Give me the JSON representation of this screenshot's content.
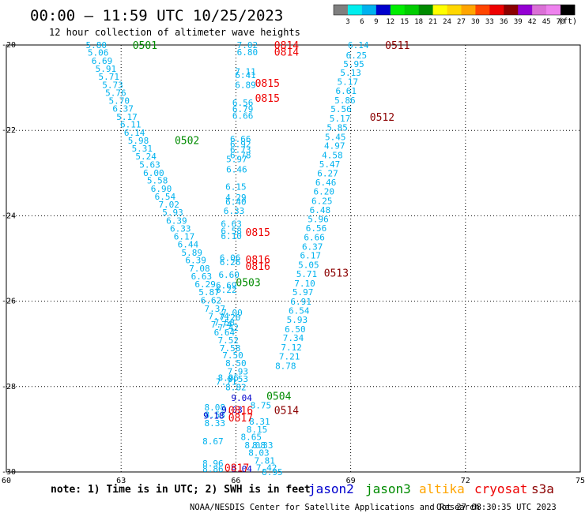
{
  "header": {
    "title": "00:00 — 11:59 UTC 10/25/2023",
    "subtitle": "12 hour collection of altimeter wave heights"
  },
  "legend": {
    "ticks": [
      "3",
      "6",
      "9",
      "12",
      "15",
      "18",
      "21",
      "24",
      "27",
      "30",
      "33",
      "36",
      "39",
      "42",
      "45",
      "70"
    ],
    "unit": "(ft)",
    "colors": [
      "#7f7f7f",
      "#00eeee",
      "#00b2ee",
      "#0000cd",
      "#00ee00",
      "#00cd00",
      "#008b00",
      "#ffff00",
      "#ffd700",
      "#ffa500",
      "#ff4500",
      "#ee0000",
      "#8b0000",
      "#9400d3",
      "#da70d6",
      "#ee82ee",
      "#000000"
    ]
  },
  "footer": {
    "note": "note: 1) Time is in UTC; 2) SWH is in feet",
    "satellites": [
      {
        "name": "jason2",
        "color": "#0000cd"
      },
      {
        "name": "jason3",
        "color": "#008b00"
      },
      {
        "name": "altika",
        "color": "#ffa500"
      },
      {
        "name": "cryosat",
        "color": "#ee0000"
      },
      {
        "name": "s3a",
        "color": "#8b0000"
      }
    ],
    "credit": "NOAA/NESDIS Center for Satellite Applications and Research",
    "timestamp": "Oct 27 08:30:35 UTC 2023"
  },
  "chart_data": {
    "type": "scatter",
    "title": "00:00 — 11:59 UTC 10/25/2023",
    "subtitle": "12 hour collection of altimeter wave heights",
    "xlim": [
      60,
      75
    ],
    "ylim": [
      -30,
      -20
    ],
    "xticks": [
      "60",
      "63",
      "66",
      "69",
      "72",
      "75"
    ],
    "yticks": [
      "-20",
      "-22",
      "-24",
      "-26",
      "-28",
      "-30"
    ],
    "grid": true,
    "series": [
      {
        "color": "#00b2ee",
        "points": [
          [
            62.35,
            -20.0,
            "5.80"
          ],
          [
            62.4,
            -20.18,
            "5.06"
          ],
          [
            62.5,
            -20.37,
            "6.69"
          ],
          [
            62.6,
            -20.55,
            "5.91"
          ],
          [
            62.68,
            -20.74,
            "5.71"
          ],
          [
            62.78,
            -20.93,
            "5.73"
          ],
          [
            62.86,
            -21.12,
            "5.76"
          ],
          [
            62.95,
            -21.3,
            "5.70"
          ],
          [
            63.05,
            -21.49,
            "6.37"
          ],
          [
            63.15,
            -21.68,
            "5.17"
          ],
          [
            63.25,
            -21.86,
            "6.11"
          ],
          [
            63.35,
            -22.05,
            "6.14"
          ],
          [
            63.45,
            -22.24,
            "5.98"
          ],
          [
            63.55,
            -22.42,
            "5.31"
          ],
          [
            63.65,
            -22.61,
            "5.24"
          ],
          [
            63.75,
            -22.8,
            "5.63"
          ],
          [
            63.85,
            -22.99,
            "6.00"
          ],
          [
            63.95,
            -23.17,
            "5.58"
          ],
          [
            64.05,
            -23.36,
            "6.90"
          ],
          [
            64.15,
            -23.55,
            "6.54"
          ],
          [
            64.25,
            -23.73,
            "7.02"
          ],
          [
            64.35,
            -23.92,
            "5.93"
          ],
          [
            64.45,
            -24.11,
            "6.39"
          ],
          [
            64.55,
            -24.3,
            "6.33"
          ],
          [
            64.65,
            -24.48,
            "6.17"
          ],
          [
            64.75,
            -24.67,
            "6.44"
          ],
          [
            64.85,
            -24.86,
            "5.89"
          ],
          [
            64.95,
            -25.04,
            "6.39"
          ],
          [
            65.05,
            -25.23,
            "7.08"
          ],
          [
            65.1,
            -25.42,
            "6.63"
          ],
          [
            65.2,
            -25.6,
            "6.29"
          ],
          [
            65.3,
            -25.79,
            "5.87"
          ],
          [
            65.35,
            -25.98,
            "6.62"
          ],
          [
            65.45,
            -26.17,
            "7.37"
          ],
          [
            65.55,
            -26.35,
            "7.74"
          ],
          [
            65.62,
            -26.54,
            "7.74"
          ],
          [
            65.7,
            -26.73,
            "6.64"
          ],
          [
            65.8,
            -26.91,
            "7.52"
          ],
          [
            65.85,
            -27.1,
            "7.58"
          ],
          [
            65.92,
            -27.26,
            "7.50"
          ],
          [
            66.0,
            -27.45,
            "8.50"
          ],
          [
            66.05,
            -27.64,
            "7.93"
          ],
          [
            66.05,
            -27.82,
            "8.53"
          ],
          [
            66.0,
            -28.01,
            "8.82"
          ],
          [
            65.8,
            -27.79,
            "8.96"
          ],
          [
            65.75,
            -27.88,
            "7.71"
          ],
          [
            65.45,
            -28.48,
            "8.08"
          ],
          [
            65.45,
            -28.66,
            "8.53"
          ],
          [
            65.45,
            -28.85,
            "8.33"
          ],
          [
            65.4,
            -29.28,
            "8.67"
          ],
          [
            65.4,
            -29.8,
            "8.96"
          ],
          [
            65.4,
            -29.93,
            "8.86"
          ],
          [
            66.65,
            -28.44,
            "8.75"
          ],
          [
            66.62,
            -28.82,
            "8.31"
          ],
          [
            66.55,
            -29.0,
            "8.15"
          ],
          [
            66.4,
            -29.18,
            "8.65"
          ],
          [
            66.5,
            -29.37,
            "8.08"
          ],
          [
            66.7,
            -29.37,
            "8.33"
          ],
          [
            66.6,
            -29.55,
            "8.03"
          ],
          [
            66.75,
            -29.73,
            "7.81"
          ],
          [
            66.8,
            -29.9,
            "7.42"
          ],
          [
            66.95,
            -30.0,
            "8.95"
          ],
          [
            66.3,
            -20.0,
            "7.02"
          ],
          [
            66.3,
            -20.17,
            "6.80"
          ],
          [
            66.25,
            -20.62,
            "7.11"
          ],
          [
            66.25,
            -20.7,
            "6.41"
          ],
          [
            66.25,
            -20.93,
            "6.89"
          ],
          [
            66.18,
            -21.35,
            "6.56"
          ],
          [
            66.18,
            -21.5,
            "6.79"
          ],
          [
            66.18,
            -21.65,
            "6.66"
          ],
          [
            66.12,
            -22.2,
            "6.66"
          ],
          [
            66.12,
            -22.32,
            "6.92"
          ],
          [
            66.12,
            -22.45,
            "6.73"
          ],
          [
            66.12,
            -22.58,
            "6.78"
          ],
          [
            66.02,
            -22.67,
            "5.97"
          ],
          [
            66.02,
            -22.91,
            "6.46"
          ],
          [
            66.0,
            -23.32,
            "6.15"
          ],
          [
            66.0,
            -23.57,
            "4.29"
          ],
          [
            66.0,
            -23.67,
            "6.40"
          ],
          [
            65.95,
            -23.88,
            "6.33"
          ],
          [
            65.88,
            -24.19,
            "6.63"
          ],
          [
            65.88,
            -24.35,
            "6.58"
          ],
          [
            65.88,
            -24.47,
            "6.10"
          ],
          [
            65.85,
            -24.98,
            "6.06"
          ],
          [
            65.85,
            -25.08,
            "6.26"
          ],
          [
            65.82,
            -25.38,
            "6.60"
          ],
          [
            65.75,
            -25.63,
            "6.69"
          ],
          [
            65.75,
            -25.73,
            "6.22"
          ],
          [
            65.9,
            -26.27,
            "7.00"
          ],
          [
            65.85,
            -26.38,
            "7.20"
          ],
          [
            65.7,
            -26.5,
            "7.58"
          ],
          [
            65.8,
            -26.62,
            "7.42"
          ],
          [
            69.2,
            -20.0,
            "6.14"
          ],
          [
            69.15,
            -20.24,
            "6.25"
          ],
          [
            69.08,
            -20.44,
            "5.95"
          ],
          [
            69.0,
            -20.65,
            "5.13"
          ],
          [
            68.92,
            -20.86,
            "5.17"
          ],
          [
            68.88,
            -21.07,
            "6.61"
          ],
          [
            68.85,
            -21.29,
            "5.86"
          ],
          [
            68.75,
            -21.5,
            "5.56"
          ],
          [
            68.72,
            -21.72,
            "5.17"
          ],
          [
            68.65,
            -21.93,
            "5.85"
          ],
          [
            68.6,
            -22.15,
            "5.45"
          ],
          [
            68.58,
            -22.36,
            "4.97"
          ],
          [
            68.52,
            -22.58,
            "4.58"
          ],
          [
            68.45,
            -22.79,
            "5.47"
          ],
          [
            68.4,
            -23.0,
            "6.27"
          ],
          [
            68.35,
            -23.22,
            "6.46"
          ],
          [
            68.3,
            -23.43,
            "6.20"
          ],
          [
            68.25,
            -23.65,
            "6.25"
          ],
          [
            68.2,
            -23.86,
            "6.48"
          ],
          [
            68.15,
            -24.08,
            "5.96"
          ],
          [
            68.1,
            -24.29,
            "6.56"
          ],
          [
            68.05,
            -24.5,
            "6.66"
          ],
          [
            68.0,
            -24.72,
            "6.37"
          ],
          [
            67.95,
            -24.93,
            "6.17"
          ],
          [
            67.9,
            -25.15,
            "5.05"
          ],
          [
            67.85,
            -25.36,
            "5.71"
          ],
          [
            67.8,
            -25.58,
            "7.10"
          ],
          [
            67.75,
            -25.79,
            "5.97"
          ],
          [
            67.7,
            -26.01,
            "6.91"
          ],
          [
            67.65,
            -26.22,
            "6.54"
          ],
          [
            67.6,
            -26.43,
            "5.93"
          ],
          [
            67.55,
            -26.65,
            "6.50"
          ],
          [
            67.5,
            -26.86,
            "7.34"
          ],
          [
            67.45,
            -27.08,
            "7.12"
          ],
          [
            67.4,
            -27.29,
            "7.21"
          ],
          [
            67.3,
            -27.51,
            "8.78"
          ]
        ]
      },
      {
        "color": "#0000cd",
        "points": [
          [
            66.15,
            -28.26,
            "9.04"
          ],
          [
            65.42,
            -28.68,
            "9.18"
          ],
          [
            66.15,
            -29.93,
            "9.04"
          ],
          [
            65.9,
            -28.54,
            "9.03"
          ]
        ]
      }
    ],
    "annotations": [
      {
        "x": 63.3,
        "y": -20.0,
        "text": "0501",
        "color": "#008b00"
      },
      {
        "x": 64.4,
        "y": -22.23,
        "text": "0502",
        "color": "#008b00"
      },
      {
        "x": 66.0,
        "y": -25.55,
        "text": "0503",
        "color": "#008b00"
      },
      {
        "x": 66.8,
        "y": -28.22,
        "text": "0504",
        "color": "#008b00"
      },
      {
        "x": 69.9,
        "y": -20.0,
        "text": "0511",
        "color": "#8b0000"
      },
      {
        "x": 69.5,
        "y": -21.68,
        "text": "0512",
        "color": "#8b0000"
      },
      {
        "x": 68.3,
        "y": -25.33,
        "text": "0513",
        "color": "#8b0000"
      },
      {
        "x": 67.0,
        "y": -28.55,
        "text": "0514",
        "color": "#8b0000"
      },
      {
        "x": 67.0,
        "y": -20.0,
        "text": "0814",
        "color": "#ee0000"
      },
      {
        "x": 67.0,
        "y": -20.16,
        "text": "0814",
        "color": "#ee0000"
      },
      {
        "x": 66.5,
        "y": -20.89,
        "text": "0815",
        "color": "#ee0000"
      },
      {
        "x": 66.5,
        "y": -21.24,
        "text": "0815",
        "color": "#ee0000"
      },
      {
        "x": 66.25,
        "y": -24.38,
        "text": "0815",
        "color": "#ee0000"
      },
      {
        "x": 66.25,
        "y": -25.02,
        "text": "0816",
        "color": "#ee0000"
      },
      {
        "x": 66.25,
        "y": -25.18,
        "text": "0816",
        "color": "#ee0000"
      },
      {
        "x": 65.8,
        "y": -28.55,
        "text": "0816",
        "color": "#ee0000"
      },
      {
        "x": 65.8,
        "y": -28.72,
        "text": "0817",
        "color": "#ee0000"
      },
      {
        "x": 65.7,
        "y": -29.9,
        "text": "0817",
        "color": "#ee0000"
      }
    ]
  }
}
